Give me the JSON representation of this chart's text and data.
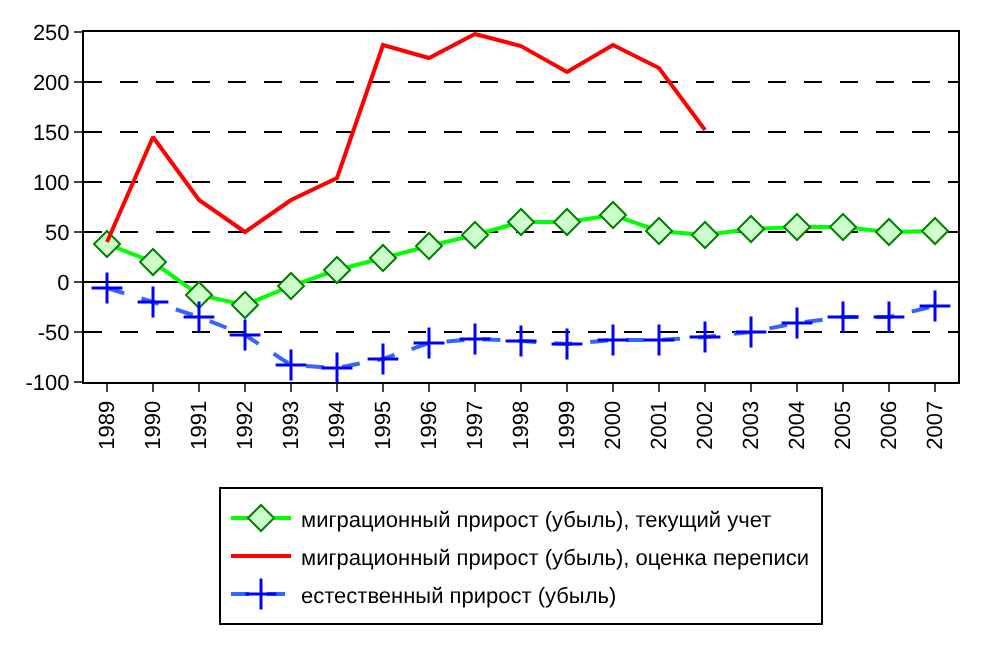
{
  "chart_data": {
    "type": "line",
    "categories": [
      "1989",
      "1990",
      "1991",
      "1992",
      "1993",
      "1994",
      "1995",
      "1996",
      "1997",
      "1998",
      "1999",
      "2000",
      "2001",
      "2002",
      "2003",
      "2004",
      "2005",
      "2006",
      "2007"
    ],
    "ylim": [
      -100,
      250
    ],
    "yticks": [
      -100,
      -50,
      0,
      50,
      100,
      150,
      200,
      250
    ],
    "grid": "y",
    "legend": "bottom",
    "series": [
      {
        "name": "миграционный прирост (убыль), текущий учет",
        "color": "#00ff00",
        "marker": "diamond",
        "line_style": "solid",
        "values": [
          38,
          20,
          -13,
          -23,
          -4,
          12,
          24,
          36,
          47,
          60,
          60,
          67,
          51,
          47,
          53,
          55,
          55,
          50,
          51
        ]
      },
      {
        "name": "миграционный прирост (убыль), оценка переписи",
        "color": "#ff0000",
        "marker": "none",
        "line_style": "solid",
        "values": [
          40,
          145,
          82,
          50,
          82,
          104,
          237,
          224,
          248,
          236,
          210,
          237,
          214,
          152,
          null,
          null,
          null,
          null,
          null
        ]
      },
      {
        "name": "естественный прирост (убыль)",
        "color": "#3366ff",
        "marker": "cross",
        "line_style": "dashed",
        "values": [
          -6,
          -20,
          -35,
          -53,
          -83,
          -86,
          -77,
          -61,
          -57,
          -59,
          -62,
          -58,
          -58,
          -55,
          -50,
          -41,
          -35,
          -35,
          -24
        ]
      }
    ]
  }
}
